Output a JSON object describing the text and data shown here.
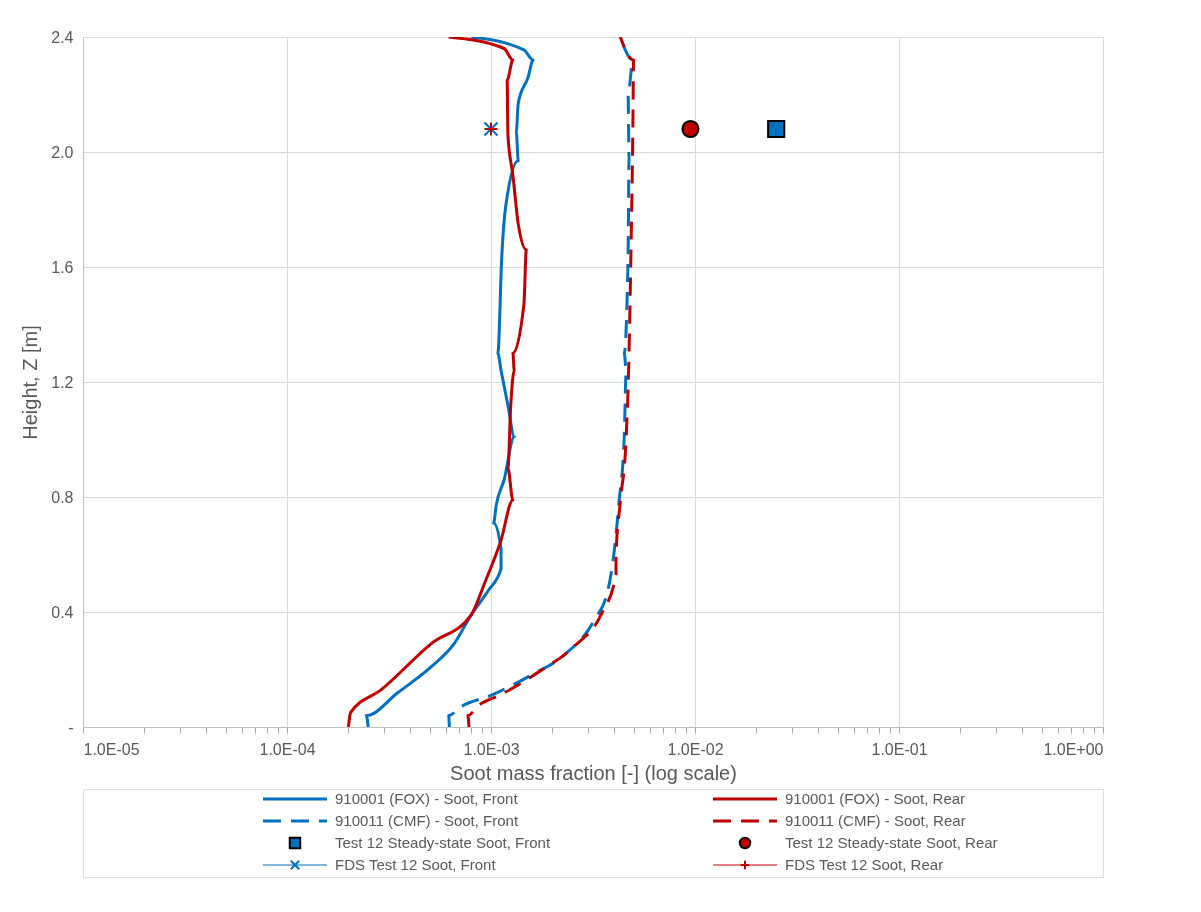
{
  "chart_data": {
    "type": "line",
    "xlabel": "Soot mass fraction [-] (log scale)",
    "ylabel": "Height, Z [m]",
    "log": "x",
    "grid": true,
    "legend": "bottom",
    "xlim": [
      1e-05,
      1
    ],
    "ylim": [
      0,
      2.4
    ],
    "xticks": [
      {
        "value": 1e-05,
        "label": "1.0E-05"
      },
      {
        "value": 2e-05,
        "label": null
      },
      {
        "value": 3e-05,
        "label": null
      },
      {
        "value": 4e-05,
        "label": null
      },
      {
        "value": 5e-05,
        "label": null
      },
      {
        "value": 6e-05,
        "label": null
      },
      {
        "value": 7e-05,
        "label": null
      },
      {
        "value": 8e-05,
        "label": null
      },
      {
        "value": 9e-05,
        "label": null
      },
      {
        "value": 0.0001,
        "label": "1.0E-04"
      },
      {
        "value": 0.0002,
        "label": null
      },
      {
        "value": 0.0003,
        "label": null
      },
      {
        "value": 0.0004,
        "label": null
      },
      {
        "value": 0.0005,
        "label": null
      },
      {
        "value": 0.0006,
        "label": null
      },
      {
        "value": 0.0007,
        "label": null
      },
      {
        "value": 0.0008,
        "label": null
      },
      {
        "value": 0.0009,
        "label": null
      },
      {
        "value": 0.001,
        "label": "1.0E-03"
      },
      {
        "value": 0.002,
        "label": null
      },
      {
        "value": 0.003,
        "label": null
      },
      {
        "value": 0.004,
        "label": null
      },
      {
        "value": 0.005,
        "label": null
      },
      {
        "value": 0.006,
        "label": null
      },
      {
        "value": 0.007,
        "label": null
      },
      {
        "value": 0.008,
        "label": null
      },
      {
        "value": 0.009,
        "label": null
      },
      {
        "value": 0.01,
        "label": "1.0E-02"
      },
      {
        "value": 0.02,
        "label": null
      },
      {
        "value": 0.03,
        "label": null
      },
      {
        "value": 0.04,
        "label": null
      },
      {
        "value": 0.05,
        "label": null
      },
      {
        "value": 0.06,
        "label": null
      },
      {
        "value": 0.07,
        "label": null
      },
      {
        "value": 0.08,
        "label": null
      },
      {
        "value": 0.09,
        "label": null
      },
      {
        "value": 0.1,
        "label": "1.0E-01"
      },
      {
        "value": 0.2,
        "label": null
      },
      {
        "value": 0.3,
        "label": null
      },
      {
        "value": 0.4,
        "label": null
      },
      {
        "value": 0.5,
        "label": null
      },
      {
        "value": 0.6,
        "label": null
      },
      {
        "value": 0.7,
        "label": null
      },
      {
        "value": 0.8,
        "label": null
      },
      {
        "value": 0.9,
        "label": null
      },
      {
        "value": 1,
        "label": "1.0E+00"
      }
    ],
    "yticks": [
      {
        "value": 0,
        "label": "-"
      },
      0.4,
      0.8,
      1.2,
      1.6,
      {
        "value": 2,
        "label": "2.0"
      },
      2.4
    ],
    "series": [
      {
        "name": "910001 (FOX) - Soot, Front",
        "color": "#0070c0",
        "line_style": "solid",
        "marker": "none",
        "x": [
          0.00025,
          0.000245,
          0.00035,
          0.00051,
          0.00066,
          0.0008,
          0.00097,
          0.00112,
          0.00112,
          0.00103,
          0.00106,
          0.00116,
          0.0013,
          0.00121,
          0.00112,
          0.00108,
          0.00113,
          0.00118,
          0.00136,
          0.00133,
          0.00136,
          0.00152,
          0.00161,
          0.00145,
          0.0008
        ],
        "values": [
          0,
          0.04,
          0.12,
          0.21,
          0.29,
          0.39,
          0.475,
          0.55,
          0.62,
          0.71,
          0.77,
          0.86,
          1.01,
          1.12,
          1.24,
          1.3,
          1.64,
          1.81,
          1.97,
          2.07,
          2.17,
          2.26,
          2.32,
          2.355,
          2.4
        ]
      },
      {
        "name": "910001 (FOX) - Soot, Rear",
        "color": "#c00000",
        "line_style": "solid",
        "marker": "none",
        "x": [
          0.0002,
          0.000205,
          0.00029,
          0.00051,
          0.0008,
          0.00093,
          0.00112,
          0.00128,
          0.00121,
          0.00125,
          0.0013,
          0.00128,
          0.00145,
          0.00149,
          0.00136,
          0.00128,
          0.00121,
          0.0012,
          0.00128,
          0.00116,
          0.00062
        ],
        "values": [
          0,
          0.05,
          0.13,
          0.29,
          0.39,
          0.5,
          0.65,
          0.79,
          0.9,
          1.12,
          1.24,
          1.3,
          1.47,
          1.66,
          1.75,
          1.92,
          2.06,
          2.25,
          2.32,
          2.36,
          2.4
        ]
      },
      {
        "name": "910011 (CMF) - Soot, Front",
        "color": "#0070c0",
        "line_style": "dashed",
        "marker": "none",
        "x": [
          0.000625,
          0.00062,
          0.00071,
          0.001,
          0.00157,
          0.00228,
          0.0032,
          0.00374,
          0.004,
          0.00424,
          0.0045,
          0.0046,
          0.0045,
          0.0047,
          0.00475,
          0.0047,
          0.00496,
          0.0043
        ],
        "values": [
          0,
          0.04,
          0.07,
          0.11,
          0.18,
          0.25,
          0.37,
          0.475,
          0.6,
          0.78,
          1.01,
          1.24,
          1.3,
          1.64,
          1.98,
          2.2,
          2.32,
          2.4
        ]
      },
      {
        "name": "910011 (CMF) - Soot, Rear",
        "color": "#c00000",
        "line_style": "dashed",
        "marker": "none",
        "x": [
          0.00078,
          0.00077,
          0.00087,
          0.0011,
          0.0017,
          0.00255,
          0.00346,
          0.0041,
          0.0041,
          0.0043,
          0.0046,
          0.0047,
          0.00475,
          0.00485,
          0.00496,
          0.005,
          0.0043
        ],
        "values": [
          0,
          0.04,
          0.075,
          0.11,
          0.19,
          0.28,
          0.39,
          0.53,
          0.6,
          0.78,
          1.01,
          1.18,
          1.3,
          1.64,
          2.09,
          2.32,
          2.4
        ]
      },
      {
        "name": "Test 12 Steady-state Soot, Front",
        "color": "#0070c0",
        "type": "scatter",
        "marker": "square",
        "x": [
          0.025
        ],
        "values": [
          2.08
        ]
      },
      {
        "name": "Test 12 Steady-state Soot, Rear",
        "color": "#c00000",
        "type": "scatter",
        "marker": "circle",
        "x": [
          0.0095
        ],
        "values": [
          2.08
        ]
      },
      {
        "name": "FDS Test 12 Soot, Front",
        "color": "#0070c0",
        "type": "scatter",
        "marker": "cross",
        "x": [
          0.001
        ],
        "values": [
          2.08
        ]
      },
      {
        "name": "FDS Test 12 Soot, Rear",
        "color": "#c00000",
        "type": "scatter",
        "marker": "plus",
        "x": [
          0.001
        ],
        "values": [
          2.08
        ]
      }
    ]
  }
}
